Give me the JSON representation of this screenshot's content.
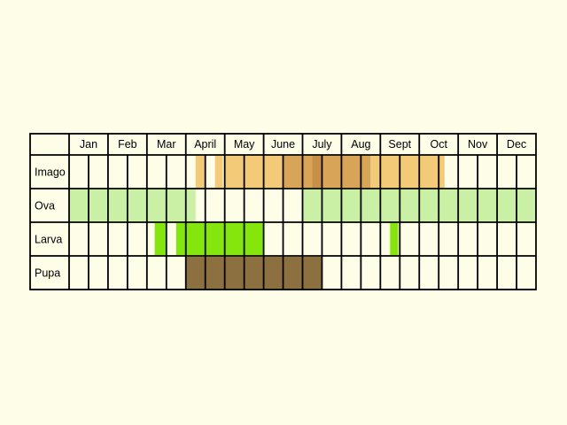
{
  "months": [
    "Jan",
    "Feb",
    "Mar",
    "April",
    "May",
    "June",
    "July",
    "Aug",
    "Sept",
    "Oct",
    "Nov",
    "Dec"
  ],
  "colors": {
    "background": "#fefde8",
    "cell": "#fefde8",
    "grid": "#000000",
    "imago_light": "#f2ca78",
    "imago_mid": "#d8a458",
    "imago_dark": "#c78f48",
    "ova": "#c9f0a5",
    "larva": "#85e60e",
    "pupa": "#8c7040"
  },
  "rows": [
    {
      "label": "Imago",
      "periods": [
        {
          "start": 3.25,
          "end": 3.5,
          "color": "imago_light"
        },
        {
          "start": 3.75,
          "end": 3.95,
          "color": "imago_light"
        },
        {
          "start": 4.0,
          "end": 5.5,
          "color": "imago_light"
        },
        {
          "start": 5.5,
          "end": 6.25,
          "color": "imago_mid"
        },
        {
          "start": 6.25,
          "end": 6.5,
          "color": "imago_dark"
        },
        {
          "start": 6.5,
          "end": 7.75,
          "color": "imago_mid"
        },
        {
          "start": 7.75,
          "end": 9.65,
          "color": "imago_light"
        }
      ]
    },
    {
      "label": "Ova",
      "periods": [
        {
          "start": 0.0,
          "end": 3.25,
          "color": "ova"
        },
        {
          "start": 6.0,
          "end": 12.0,
          "color": "ova"
        }
      ]
    },
    {
      "label": "Larva",
      "periods": [
        {
          "start": 2.2,
          "end": 2.5,
          "color": "larva"
        },
        {
          "start": 2.75,
          "end": 5.0,
          "color": "larva"
        },
        {
          "start": 8.25,
          "end": 8.45,
          "color": "larva"
        }
      ]
    },
    {
      "label": "Pupa",
      "periods": [
        {
          "start": 3.0,
          "end": 6.5,
          "color": "pupa"
        }
      ]
    }
  ]
}
